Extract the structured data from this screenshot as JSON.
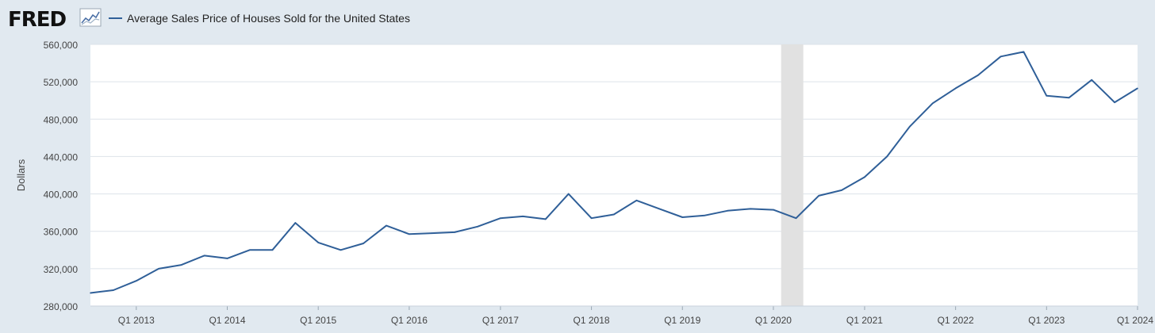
{
  "header": {
    "logo_text": "FRED",
    "logo_icon": "line-chart-icon",
    "legend_label": "Average Sales Price of Houses Sold for the United States"
  },
  "colors": {
    "background": "#e1e9f0",
    "plot_background": "#ffffff",
    "series_line": "#2f5f98",
    "grid": "#dde3ea",
    "recession_band": "#e1e1e1",
    "logo": "#111111"
  },
  "chart_data": {
    "type": "line",
    "title": "",
    "ylabel": "Dollars",
    "xlabel": "",
    "ylim": [
      280000,
      560000
    ],
    "yticks": [
      280000,
      320000,
      360000,
      400000,
      440000,
      480000,
      520000,
      560000
    ],
    "ytick_labels": [
      "280,000",
      "320,000",
      "360,000",
      "400,000",
      "440,000",
      "480,000",
      "520,000",
      "560,000"
    ],
    "xlim": [
      "2012-07-01",
      "2024-01-01"
    ],
    "xticks": [
      "2013-01-01",
      "2014-01-01",
      "2015-01-01",
      "2016-01-01",
      "2017-01-01",
      "2018-01-01",
      "2019-01-01",
      "2020-01-01",
      "2021-01-01",
      "2022-01-01",
      "2023-01-01",
      "2024-01-01"
    ],
    "xtick_labels": [
      "Q1 2013",
      "Q1 2014",
      "Q1 2015",
      "Q1 2016",
      "Q1 2017",
      "Q1 2018",
      "Q1 2019",
      "Q1 2020",
      "Q1 2021",
      "Q1 2022",
      "Q1 2023",
      "Q1 2024"
    ],
    "grid": true,
    "legend": "top-left",
    "recession_shading": {
      "start": "2020-02-01",
      "end": "2020-04-30"
    },
    "series": [
      {
        "name": "Average Sales Price of Houses Sold for the United States",
        "points": [
          [
            "2012-07-01",
            294000
          ],
          [
            "2012-10-01",
            297000
          ],
          [
            "2013-01-01",
            307000
          ],
          [
            "2013-04-01",
            320000
          ],
          [
            "2013-07-01",
            324000
          ],
          [
            "2013-10-01",
            334000
          ],
          [
            "2014-01-01",
            331000
          ],
          [
            "2014-04-01",
            340000
          ],
          [
            "2014-07-01",
            340000
          ],
          [
            "2014-10-01",
            369000
          ],
          [
            "2015-01-01",
            348000
          ],
          [
            "2015-04-01",
            340000
          ],
          [
            "2015-07-01",
            347000
          ],
          [
            "2015-10-01",
            366000
          ],
          [
            "2016-01-01",
            357000
          ],
          [
            "2016-04-01",
            358000
          ],
          [
            "2016-07-01",
            359000
          ],
          [
            "2016-10-01",
            365000
          ],
          [
            "2017-01-01",
            374000
          ],
          [
            "2017-04-01",
            376000
          ],
          [
            "2017-07-01",
            373000
          ],
          [
            "2017-10-01",
            400000
          ],
          [
            "2018-01-01",
            374000
          ],
          [
            "2018-04-01",
            378000
          ],
          [
            "2018-07-01",
            393000
          ],
          [
            "2018-10-01",
            384000
          ],
          [
            "2019-01-01",
            375000
          ],
          [
            "2019-04-01",
            377000
          ],
          [
            "2019-07-01",
            382000
          ],
          [
            "2019-10-01",
            384000
          ],
          [
            "2020-01-01",
            383000
          ],
          [
            "2020-04-01",
            374000
          ],
          [
            "2020-07-01",
            398000
          ],
          [
            "2020-10-01",
            404000
          ],
          [
            "2021-01-01",
            418000
          ],
          [
            "2021-04-01",
            440000
          ],
          [
            "2021-07-01",
            472000
          ],
          [
            "2021-10-01",
            497000
          ],
          [
            "2022-01-01",
            513000
          ],
          [
            "2022-04-01",
            527000
          ],
          [
            "2022-07-01",
            547000
          ],
          [
            "2022-10-01",
            552000
          ],
          [
            "2023-01-01",
            505000
          ],
          [
            "2023-04-01",
            503000
          ],
          [
            "2023-07-01",
            522000
          ],
          [
            "2023-10-01",
            498000
          ],
          [
            "2024-01-01",
            513000
          ]
        ]
      }
    ]
  }
}
